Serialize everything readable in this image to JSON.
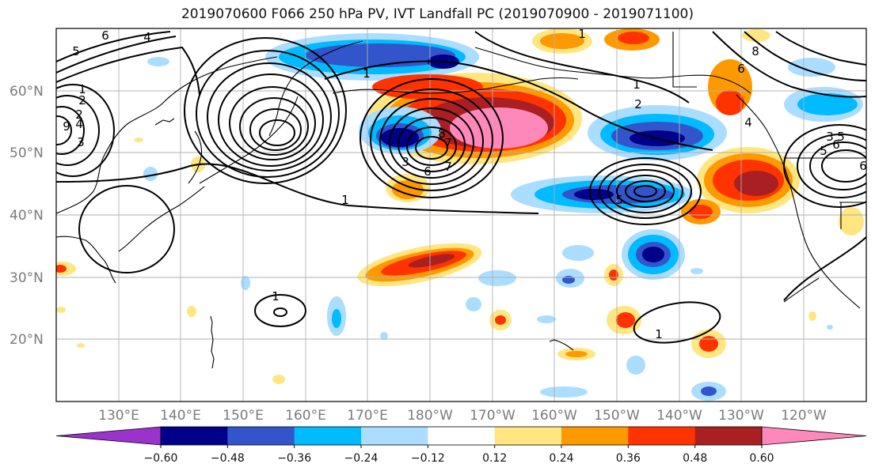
{
  "title": "2019070600 F066 250 hPa PV, IVT Landfall PC (2019070900 - 2019071100)",
  "colors": {
    "bins": [
      "#9933cc",
      "#000088",
      "#3355cc",
      "#00bbff",
      "#aaddff",
      "#ffffff",
      "#ffe680",
      "#ff9900",
      "#ff3300",
      "#aa1f22",
      "#ff88bb"
    ],
    "contour": "#000000",
    "coast": "#000000",
    "grid": "#b0b0b0",
    "tick_text": "#7a7a7a"
  },
  "lat_labels": [
    "60°N",
    "50°N",
    "40°N",
    "30°N",
    "20°N"
  ],
  "lon_labels": [
    "130°E",
    "140°E",
    "150°E",
    "160°E",
    "170°E",
    "180°W",
    "170°W",
    "160°W",
    "150°W",
    "140°W",
    "130°W",
    "120°W"
  ],
  "colorbar": {
    "ticks": [
      "−0.60",
      "−0.48",
      "−0.36",
      "−0.24",
      "−0.12",
      "0.12",
      "0.24",
      "0.36",
      "0.48",
      "0.60"
    ]
  },
  "contour_labels": [
    "6",
    "4",
    "5",
    "2",
    "1",
    "2",
    "3",
    "4",
    "9",
    "1",
    "7",
    "1",
    "3",
    "5",
    "6",
    "7",
    "8",
    "2",
    "1",
    "1",
    "1",
    "1",
    "8",
    "6",
    "5",
    "6",
    "3",
    "4",
    "5",
    "6"
  ]
}
